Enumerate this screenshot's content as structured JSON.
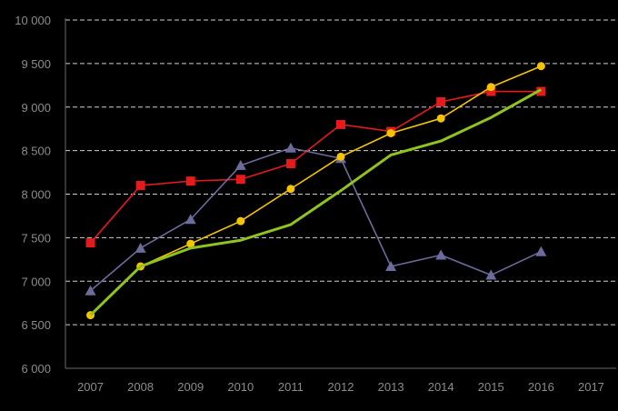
{
  "chart_data": {
    "type": "line",
    "x": [
      "2007",
      "2008",
      "2009",
      "2010",
      "2011",
      "2012",
      "2013",
      "2014",
      "2015",
      "2016",
      "2017"
    ],
    "ylim": [
      6000,
      10000
    ],
    "y_ticks": [
      "6 000",
      "6 500",
      "7 000",
      "7 500",
      "8 000",
      "8 500",
      "9 000",
      "9 500",
      "10 000"
    ],
    "grid": true,
    "series": [
      {
        "color": "#e41a1c",
        "marker": "square",
        "values": [
          7440,
          8100,
          8150,
          8170,
          8350,
          8800,
          8720,
          9060,
          9180,
          9180,
          null
        ]
      },
      {
        "color": "#6b6b9c",
        "marker": "triangle",
        "values": [
          6890,
          7380,
          7710,
          8330,
          8530,
          8410,
          7170,
          7300,
          7070,
          7340,
          null
        ]
      },
      {
        "color": "#f5c400",
        "marker": "circle",
        "values": [
          6610,
          7170,
          7430,
          7690,
          8060,
          8430,
          8700,
          8870,
          9230,
          9470,
          null
        ]
      },
      {
        "color": "#8fc31f",
        "marker": "none",
        "values": [
          6610,
          7170,
          7380,
          7470,
          7650,
          8040,
          8450,
          8610,
          8880,
          9200,
          null
        ]
      }
    ]
  }
}
